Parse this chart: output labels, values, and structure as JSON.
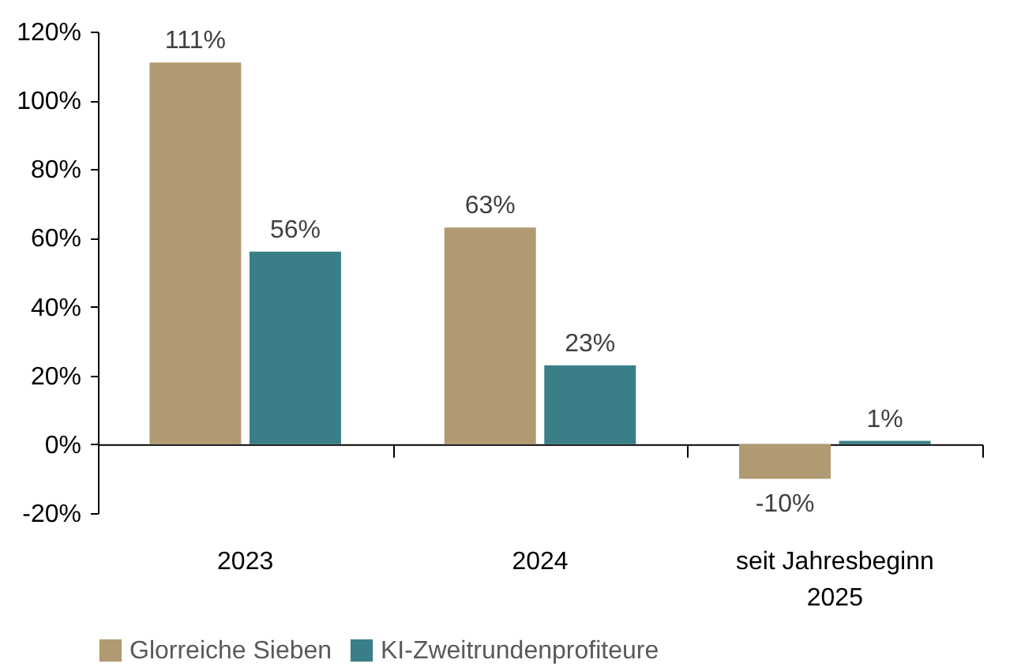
{
  "chart_data": {
    "type": "bar",
    "categories": [
      "2023",
      "2024",
      "seit Jahresbeginn 2025"
    ],
    "series": [
      {
        "name": "Glorreiche Sieben",
        "color": "#b09a72",
        "values": [
          111,
          63,
          -10
        ],
        "value_labels": [
          "111%",
          "63%",
          "-10%"
        ]
      },
      {
        "name": "KI-Zweitrundenprofiteure",
        "color": "#3a7f88",
        "values": [
          56,
          23,
          1
        ],
        "value_labels": [
          "56%",
          "23%",
          "1%"
        ]
      }
    ],
    "ylim": [
      -20,
      120
    ],
    "yticks": [
      {
        "value": -20,
        "label": "-20%"
      },
      {
        "value": 0,
        "label": "0%"
      },
      {
        "value": 20,
        "label": "20%"
      },
      {
        "value": 40,
        "label": "40%"
      },
      {
        "value": 60,
        "label": "60%"
      },
      {
        "value": 80,
        "label": "80%"
      },
      {
        "value": 100,
        "label": "100%"
      },
      {
        "value": 120,
        "label": "120%"
      }
    ],
    "legend": "bottom"
  }
}
